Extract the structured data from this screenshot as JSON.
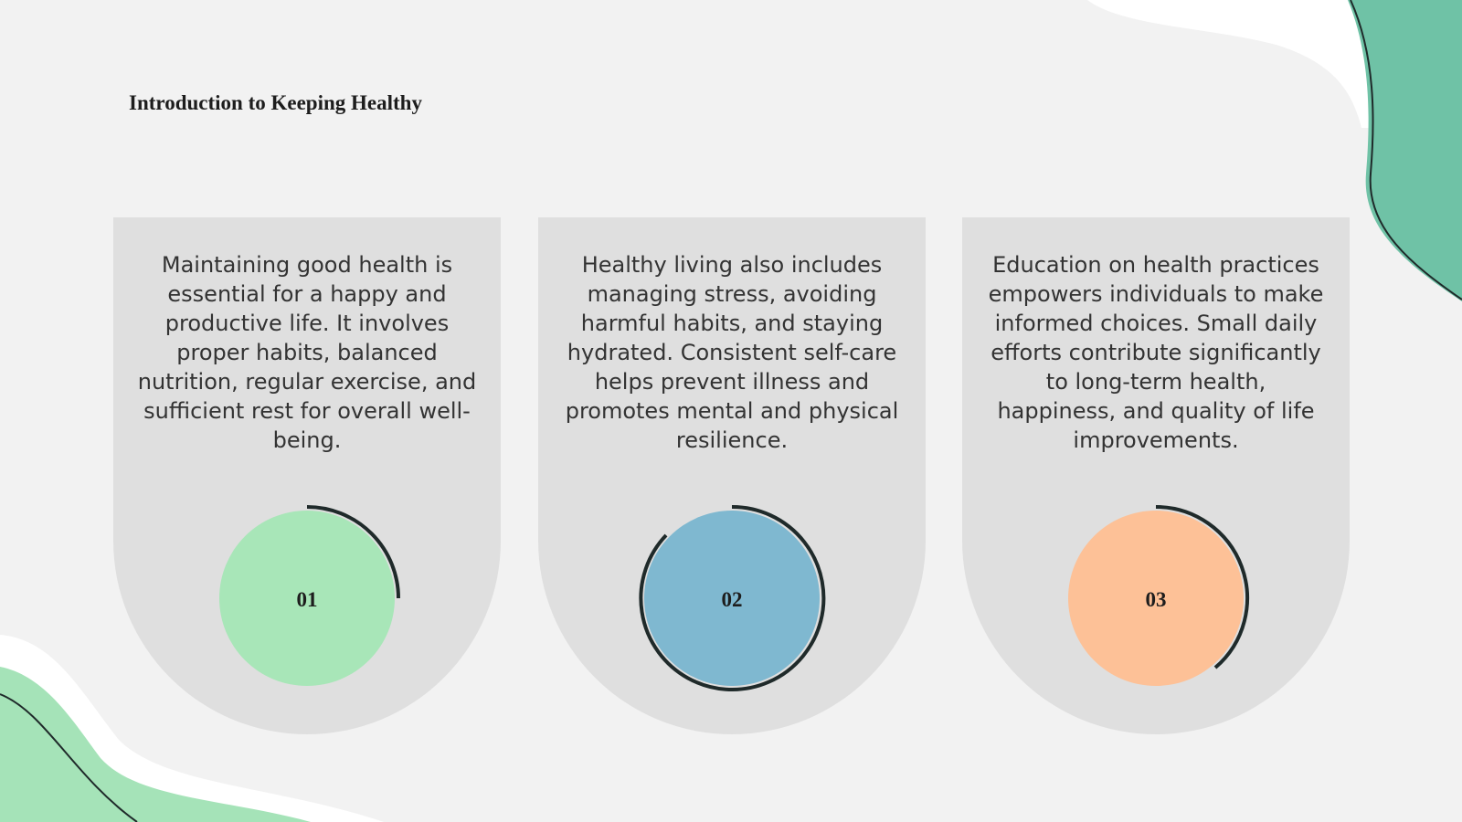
{
  "title": "Introduction to Keeping Healthy",
  "cards": [
    {
      "text": "Maintaining good health is essential for a happy and productive life. It involves proper habits, balanced nutrition, regular exercise, and sufficient rest for overall well-being.",
      "number": "01"
    },
    {
      "text": "Healthy living also includes managing stress, avoiding harmful habits, and staying hydrated. Consistent self-care helps prevent illness and promotes mental and physical resilience.",
      "number": "02"
    },
    {
      "text": "Education on health practices empowers individuals to make informed choices. Small daily efforts contribute significantly to long-term health, happiness, and quality of life improvements.",
      "number": "03"
    }
  ]
}
